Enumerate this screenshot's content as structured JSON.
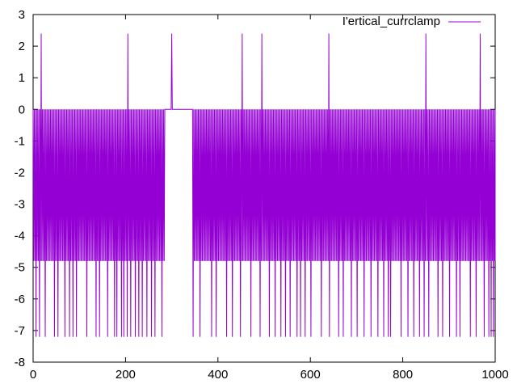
{
  "chart_data": {
    "type": "line",
    "title": "",
    "xlabel": "",
    "ylabel": "",
    "xlim": [
      0,
      1000
    ],
    "ylim": [
      -8,
      3
    ],
    "xticks": [
      "0",
      "200",
      "400",
      "600",
      "800",
      "1000"
    ],
    "yticks": [
      "3",
      "2",
      "1",
      "0",
      "-1",
      "-2",
      "-3",
      "-4",
      "-5",
      "-6",
      "-7",
      "-8"
    ],
    "grid": false,
    "legend_position": "top-right",
    "series": [
      {
        "name": "I'ertical_currclamp",
        "color": "#9400d3",
        "levels": {
          "baseline": 0,
          "low": -4.8,
          "deep": -7.2,
          "spike": 2.4
        },
        "spike_x": [
          18,
          205,
          300,
          452,
          495,
          640,
          850,
          968
        ],
        "deep_x": [
          5,
          12,
          24,
          45,
          52,
          67,
          78,
          86,
          92,
          115,
          135,
          143,
          160,
          175,
          180,
          190,
          195,
          203,
          210,
          220,
          228,
          234,
          245,
          255,
          262,
          278,
          345,
          360,
          385,
          395,
          418,
          430,
          448,
          470,
          490,
          510,
          522,
          536,
          545,
          556,
          570,
          578,
          588,
          600,
          622,
          640,
          660,
          670,
          688,
          700,
          715,
          730,
          745,
          758,
          768,
          772,
          795,
          810,
          822,
          835,
          845,
          855,
          875,
          885,
          900,
          915,
          922,
          945,
          957,
          975,
          985,
          990,
          996
        ],
        "gap_x": [
          [
            285,
            343
          ]
        ]
      }
    ]
  }
}
